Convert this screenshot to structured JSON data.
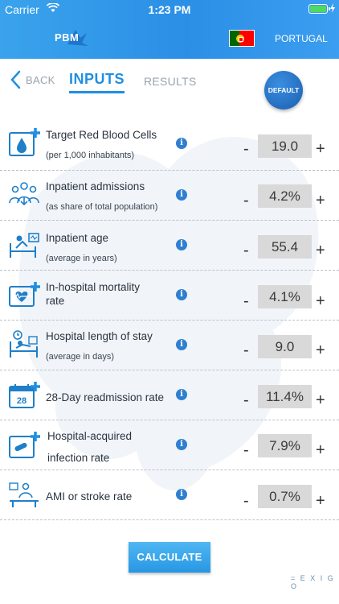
{
  "status_bar": {
    "carrier": "Carrier",
    "time": "1:23 PM"
  },
  "header": {
    "logo_text": "PBM",
    "country": "PORTUGAL"
  },
  "nav": {
    "back_label": "BACK",
    "tab_inputs": "INPUTS",
    "tab_results": "RESULTS",
    "default_label": "DEFAULT"
  },
  "rows": [
    {
      "icon": "blood-drop-icon",
      "label": "Target Red Blood Cells",
      "sublabel": "(per 1,000 inhabitants)",
      "value": "19.0"
    },
    {
      "icon": "people-icon",
      "label": "Inpatient admissions",
      "sublabel": "(as share of total population)",
      "value": "4.2%"
    },
    {
      "icon": "patient-bed-icon",
      "label": "Inpatient age",
      "sublabel": "(average in years)",
      "value": "55.4"
    },
    {
      "icon": "heart-monitor-icon",
      "label": "In-hospital mortality",
      "sublabel": "rate",
      "value": "4.1%"
    },
    {
      "icon": "bed-clock-icon",
      "label": "Hospital length of stay",
      "sublabel": "(average in days)",
      "value": "9.0"
    },
    {
      "icon": "calendar-icon",
      "label": "28-Day readmission rate",
      "calendar_day": "28",
      "value": "11.4%"
    },
    {
      "icon": "infection-pill-icon",
      "label": "Hospital-acquired",
      "sublabel": "infection rate",
      "value": "7.9%"
    },
    {
      "icon": "stroke-patient-icon",
      "label": "AMI or stroke rate",
      "value": "0.7%"
    }
  ],
  "controls": {
    "minus": "-",
    "plus": "+",
    "info": "i"
  },
  "calculate_label": "CALCULATE",
  "footer_brand": "= E X I G O",
  "colors": {
    "accent": "#1f8fe3",
    "header": "#2b8fe6",
    "value_box": "#d9d9d9"
  }
}
